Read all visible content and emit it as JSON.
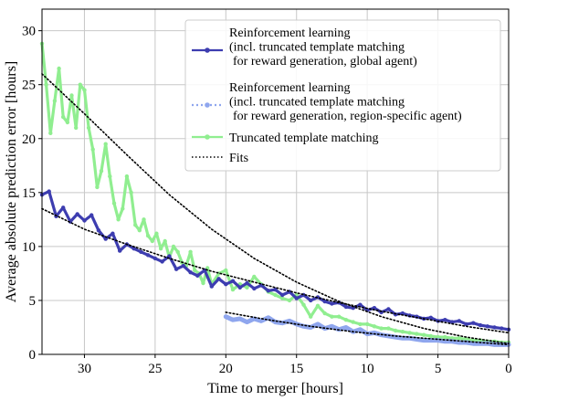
{
  "chart_data": {
    "type": "line",
    "xlabel": "Time to merger [hours]",
    "ylabel": "Average absolute prediction error [hours]",
    "xlim": [
      33,
      0
    ],
    "ylim": [
      0,
      32
    ],
    "x_ticks": [
      30,
      25,
      20,
      15,
      10,
      5,
      0
    ],
    "y_ticks": [
      0,
      5,
      10,
      15,
      20,
      25,
      30
    ],
    "grid": true,
    "legend_position": "top-right",
    "series": [
      {
        "name": "Reinforcement learning (incl. truncated template matching for reward generation, global agent)",
        "legend_lines": [
          "Reinforcement learning",
          "(incl. truncated template matching",
          "for reward generation, global agent)"
        ],
        "color": "#3d3db0",
        "style": "solid",
        "x": [
          33,
          32.5,
          32,
          31.5,
          31,
          30.5,
          30,
          29.5,
          29,
          28.5,
          28,
          27.5,
          27,
          26.5,
          26,
          25.5,
          25,
          24.5,
          24,
          23.5,
          23,
          22.5,
          22,
          21.5,
          21,
          20.5,
          20,
          19.5,
          19,
          18.5,
          18,
          17.5,
          17,
          16.5,
          16,
          15.5,
          15,
          14.5,
          14,
          13.5,
          13,
          12.5,
          12,
          11.5,
          11,
          10.5,
          10,
          9.5,
          9,
          8.5,
          8,
          7.5,
          7,
          6.5,
          6,
          5.5,
          5,
          4.5,
          4,
          3.5,
          3,
          2.5,
          2,
          1.5,
          1,
          0.5,
          0
        ],
        "y": [
          14.8,
          15.1,
          12.8,
          13.6,
          12.3,
          13.0,
          12.4,
          12.9,
          11.5,
          10.7,
          11.2,
          9.6,
          10.2,
          9.8,
          9.5,
          9.2,
          8.9,
          8.6,
          9.1,
          7.9,
          8.2,
          7.6,
          7.3,
          7.8,
          6.3,
          7.0,
          6.5,
          6.8,
          6.2,
          6.6,
          6.1,
          6.4,
          5.9,
          6.0,
          5.5,
          5.8,
          5.2,
          5.5,
          5.0,
          5.3,
          4.9,
          4.7,
          4.8,
          4.4,
          4.3,
          4.6,
          4.1,
          4.3,
          3.9,
          4.2,
          3.7,
          3.8,
          3.6,
          3.5,
          3.3,
          3.4,
          3.1,
          3.2,
          3.0,
          3.1,
          2.8,
          2.9,
          2.7,
          2.6,
          2.5,
          2.4,
          2.3
        ]
      },
      {
        "name": "Reinforcement learning (incl. truncated template matching for reward generation, region-specific agent)",
        "legend_lines": [
          "Reinforcement learning",
          "(incl. truncated template matching",
          "for reward generation, region-specific agent)"
        ],
        "color": "#8fa6ee",
        "style": "dotted",
        "x": [
          20,
          19.5,
          19,
          18.5,
          18,
          17.5,
          17,
          16.5,
          16,
          15.5,
          15,
          14.5,
          14,
          13.5,
          13,
          12.5,
          12,
          11.5,
          11,
          10.5,
          10,
          9.5,
          9,
          8.5,
          8,
          7.5,
          7,
          6.5,
          6,
          5.5,
          5,
          4.5,
          4,
          3.5,
          3,
          2.5,
          2,
          1.5,
          1,
          0.5,
          0
        ],
        "y": [
          3.5,
          3.2,
          3.3,
          3.0,
          3.3,
          3.1,
          3.4,
          3.0,
          2.9,
          3.1,
          2.8,
          2.6,
          2.5,
          2.8,
          2.4,
          2.6,
          2.3,
          2.5,
          2.1,
          2.3,
          1.9,
          2.0,
          1.8,
          1.7,
          1.6,
          1.5,
          1.5,
          1.4,
          1.3,
          1.3,
          1.3,
          1.2,
          1.2,
          1.1,
          1.1,
          1.0,
          1.0,
          1.0,
          0.9,
          0.9,
          0.9
        ]
      },
      {
        "name": "Truncated template matching",
        "legend_lines": [
          "Truncated template matching"
        ],
        "color": "#90ee90",
        "style": "solid",
        "x": [
          33,
          32.7,
          32.4,
          32.1,
          31.8,
          31.5,
          31.2,
          30.9,
          30.6,
          30.3,
          30,
          29.7,
          29.4,
          29.1,
          28.8,
          28.5,
          28.2,
          27.9,
          27.6,
          27.3,
          27,
          26.7,
          26.4,
          26.1,
          25.8,
          25.5,
          25.2,
          24.9,
          24.6,
          24.3,
          24,
          23.7,
          23.4,
          23.1,
          22.8,
          22.5,
          22.2,
          21.9,
          21.6,
          21.3,
          21,
          20.5,
          20,
          19.5,
          19,
          18.5,
          18,
          17.5,
          17,
          16.5,
          16,
          15.5,
          15,
          14.5,
          14,
          13.5,
          13,
          12.5,
          12,
          11.5,
          11,
          10.5,
          10,
          9.5,
          9,
          8.5,
          8,
          7.5,
          7,
          6.5,
          6,
          5.5,
          5,
          4.5,
          4,
          3.5,
          3,
          2.5,
          2,
          1.5,
          1,
          0.5,
          0
        ],
        "y": [
          28.8,
          25.0,
          20.5,
          23.5,
          26.5,
          22.0,
          21.5,
          24.0,
          21.0,
          25.0,
          24.5,
          21.0,
          19.0,
          15.5,
          17.0,
          19.5,
          16.5,
          14.0,
          12.5,
          13.5,
          16.5,
          15.0,
          12.0,
          11.5,
          12.5,
          11.0,
          10.5,
          11.2,
          9.8,
          10.5,
          9.0,
          10.0,
          9.5,
          8.5,
          8.2,
          9.5,
          7.8,
          7.5,
          6.6,
          8.0,
          6.5,
          7.5,
          7.8,
          6.0,
          6.5,
          6.2,
          7.2,
          6.5,
          5.8,
          5.5,
          5.2,
          5.0,
          5.5,
          4.6,
          3.5,
          4.5,
          3.8,
          3.5,
          3.5,
          3.2,
          3.0,
          2.8,
          2.8,
          2.6,
          2.4,
          2.4,
          2.2,
          2.1,
          2.0,
          1.9,
          1.8,
          1.7,
          1.6,
          1.6,
          1.5,
          1.5,
          1.4,
          1.3,
          1.3,
          1.2,
          1.2,
          1.1,
          1.1
        ]
      },
      {
        "name": "Fits",
        "legend_lines": [
          "Fits"
        ],
        "color": "#000000",
        "style": "dotted",
        "fits": [
          {
            "x": [
              33,
              30,
              27,
              24,
              21,
              18,
              15,
              12,
              9,
              6,
              3,
              0
            ],
            "y": [
              26.0,
              22.3,
              18.5,
              14.8,
              11.6,
              8.9,
              6.7,
              4.9,
              3.5,
              2.4,
              1.6,
              1.0
            ]
          },
          {
            "x": [
              33,
              30,
              27,
              24,
              21,
              18,
              15,
              12,
              9,
              6,
              3,
              0
            ],
            "y": [
              13.5,
              11.6,
              10.2,
              8.9,
              7.7,
              6.7,
              5.7,
              4.8,
              4.0,
              3.3,
              2.6,
              2.0
            ]
          },
          {
            "x": [
              20,
              17,
              14,
              11,
              8,
              5,
              2,
              0
            ],
            "y": [
              3.9,
              3.2,
              2.6,
              2.1,
              1.7,
              1.4,
              1.1,
              0.9
            ]
          }
        ]
      }
    ]
  }
}
